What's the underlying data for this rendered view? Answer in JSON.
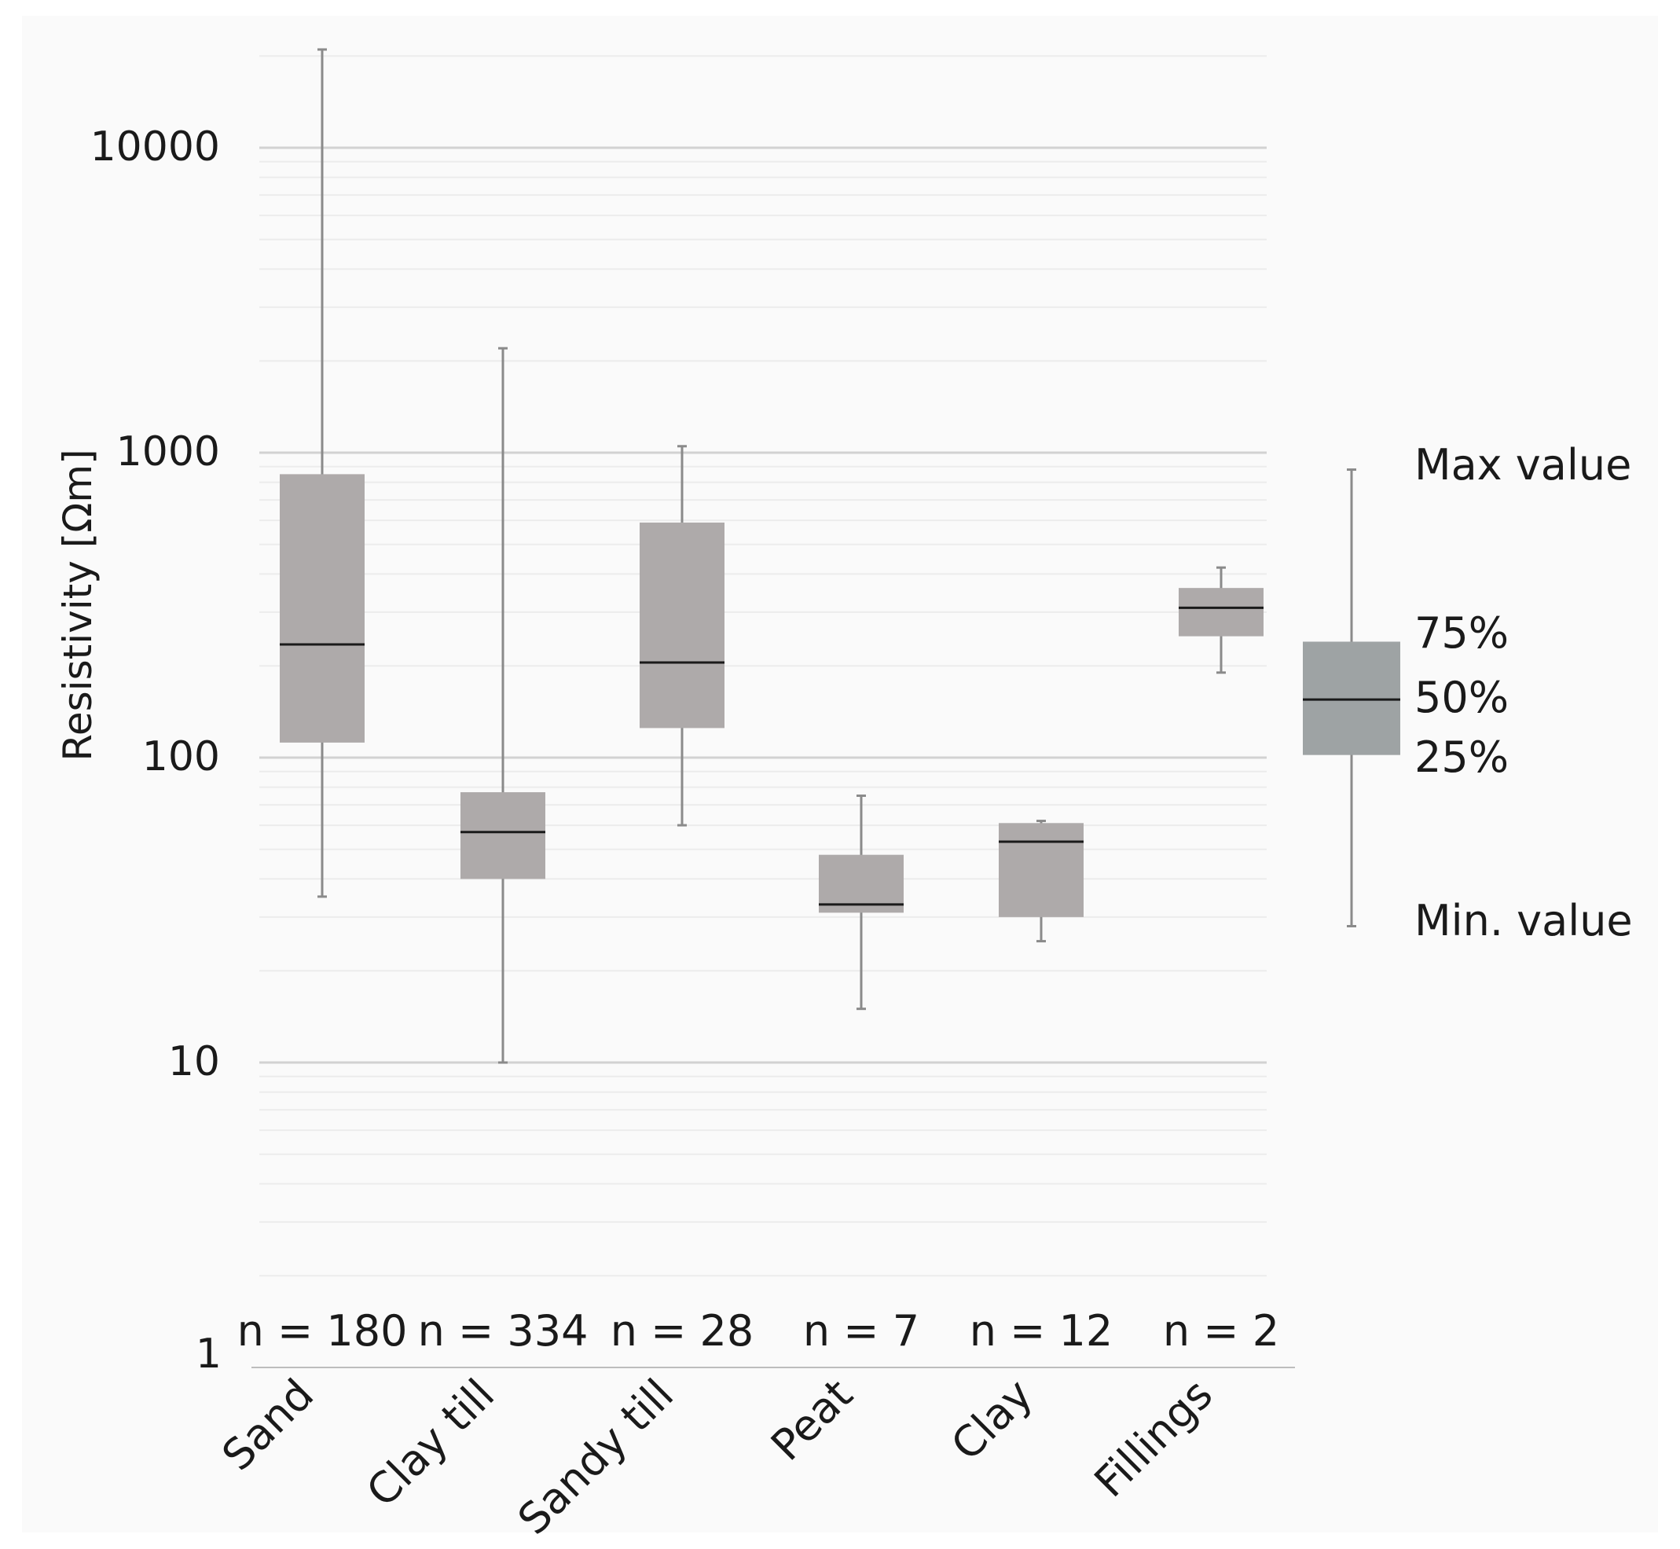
{
  "chart_data": {
    "type": "boxplot",
    "ylabel": "Resistivity [Ωm]",
    "yscale": "log",
    "ylim": [
      1,
      20000
    ],
    "yticks": [
      {
        "value": 1,
        "label": "1"
      },
      {
        "value": 10,
        "label": "10"
      },
      {
        "value": 100,
        "label": "100"
      },
      {
        "value": 1000,
        "label": "1000"
      },
      {
        "value": 10000,
        "label": "10000"
      }
    ],
    "grid": true,
    "categories": [
      "Sand",
      "Clay till",
      "Sandy till",
      "Peat",
      "Clay",
      "Fillings"
    ],
    "counts": [
      "n = 180",
      "n = 334",
      "n = 28",
      "n = 7",
      "n = 12",
      "n = 2"
    ],
    "boxes": [
      {
        "name": "Sand",
        "min": 35,
        "q1": 112,
        "median": 235,
        "q3": 850,
        "max": 21000
      },
      {
        "name": "Clay till",
        "min": 10,
        "q1": 40,
        "median": 57,
        "q3": 77,
        "max": 2200
      },
      {
        "name": "Sandy till",
        "min": 60,
        "q1": 125,
        "median": 205,
        "q3": 590,
        "max": 1050
      },
      {
        "name": "Peat",
        "min": 15,
        "q1": 31,
        "median": 33,
        "q3": 48,
        "max": 75
      },
      {
        "name": "Clay",
        "min": 25,
        "q1": 30,
        "median": 53,
        "q3": 61,
        "max": 62
      },
      {
        "name": "Fillings",
        "min": 190,
        "q1": 250,
        "median": 310,
        "q3": 360,
        "max": 420
      }
    ],
    "legend": {
      "position": "right",
      "labels": {
        "max": "Max value",
        "q3": "75%",
        "median": "50%",
        "q1": "25%",
        "min": "Min. value"
      },
      "example": {
        "min": 28,
        "q1": 102,
        "median": 155,
        "q3": 240,
        "max": 880
      }
    },
    "colors": {
      "box": "#aeaaaa",
      "legend_box": "#9ea3a4",
      "whisker": "#8a8a8a",
      "median": "#1a1a1a",
      "grid": "#dedede",
      "axis": "#bdbdbd"
    }
  }
}
